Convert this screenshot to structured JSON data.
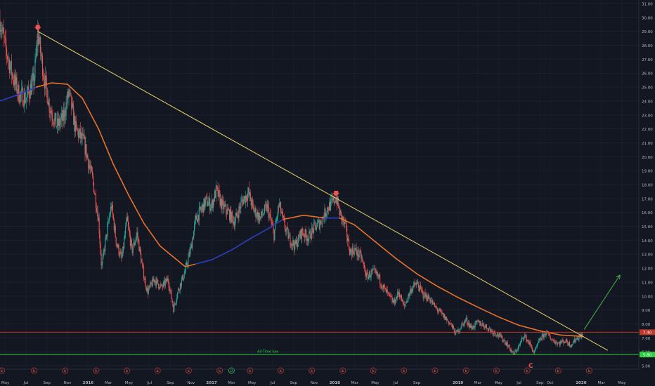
{
  "chart_data": {
    "type": "candlestick",
    "y_axis": {
      "position": "right",
      "ticks": [
        "31.00",
        "30.00",
        "29.00",
        "28.00",
        "27.00",
        "26.00",
        "25.00",
        "24.00",
        "23.00",
        "22.00",
        "21.00",
        "20.00",
        "19.00",
        "18.00",
        "17.00",
        "16.00",
        "15.00",
        "14.00",
        "13.00",
        "12.00",
        "11.00",
        "10.00",
        "9.00",
        "8.00",
        "7.00",
        "6.00",
        "5.00"
      ],
      "range": [
        4.75,
        31.25
      ]
    },
    "x_axis": {
      "tick_labels": [
        "May",
        "Jul",
        "Sep",
        "Nov",
        "2016",
        "Mar",
        "May",
        "Jul",
        "Sep",
        "Nov",
        "2017",
        "Mar",
        "May",
        "Jul",
        "Sep",
        "Nov",
        "2018",
        "Mar",
        "May",
        "Jul",
        "Sep",
        "2019",
        "Mar",
        "May",
        "Jul",
        "Sep",
        "Oct",
        "2020",
        "Mar",
        "May"
      ],
      "bold_labels": [
        "2016",
        "2017",
        "2018",
        "2019",
        "2020"
      ],
      "range": [
        "2015-04-15",
        "2020-06-20"
      ]
    },
    "price_path": [
      [
        "2015-04-15",
        29.8
      ],
      [
        "2015-05-01",
        27.8
      ],
      [
        "2015-05-20",
        26.0
      ],
      [
        "2015-06-10",
        24.5
      ],
      [
        "2015-07-01",
        24.2
      ],
      [
        "2015-07-25",
        25.5
      ],
      [
        "2015-08-05",
        28.9
      ],
      [
        "2015-08-25",
        25.5
      ],
      [
        "2015-09-10",
        23.5
      ],
      [
        "2015-10-01",
        22.2
      ],
      [
        "2015-10-20",
        22.8
      ],
      [
        "2015-11-05",
        24.6
      ],
      [
        "2015-11-25",
        22.0
      ],
      [
        "2015-12-20",
        21.0
      ],
      [
        "2016-01-15",
        18.3
      ],
      [
        "2016-02-01",
        15.5
      ],
      [
        "2016-02-10",
        12.0
      ],
      [
        "2016-02-25",
        14.5
      ],
      [
        "2016-03-10",
        16.5
      ],
      [
        "2016-03-25",
        13.8
      ],
      [
        "2016-04-10",
        12.6
      ],
      [
        "2016-04-25",
        15.5
      ],
      [
        "2016-05-10",
        13.2
      ],
      [
        "2016-05-25",
        14.5
      ],
      [
        "2016-06-10",
        12.0
      ],
      [
        "2016-06-25",
        10.3
      ],
      [
        "2016-07-15",
        11.2
      ],
      [
        "2016-08-05",
        10.6
      ],
      [
        "2016-08-25",
        11.2
      ],
      [
        "2016-09-10",
        9.1
      ],
      [
        "2016-09-25",
        10.5
      ],
      [
        "2016-10-15",
        11.8
      ],
      [
        "2016-11-01",
        13.5
      ],
      [
        "2016-11-15",
        15.5
      ],
      [
        "2016-12-01",
        16.2
      ],
      [
        "2016-12-15",
        16.8
      ],
      [
        "2017-01-01",
        16.5
      ],
      [
        "2017-01-15",
        17.6
      ],
      [
        "2017-02-01",
        16.5
      ],
      [
        "2017-02-20",
        16.0
      ],
      [
        "2017-03-10",
        15.3
      ],
      [
        "2017-04-01",
        16.8
      ],
      [
        "2017-04-20",
        17.4
      ],
      [
        "2017-05-05",
        16.2
      ],
      [
        "2017-05-25",
        15.6
      ],
      [
        "2017-06-15",
        16.4
      ],
      [
        "2017-07-05",
        14.4
      ],
      [
        "2017-07-20",
        16.6
      ],
      [
        "2017-08-05",
        15.0
      ],
      [
        "2017-08-20",
        14.1
      ],
      [
        "2017-09-05",
        13.6
      ],
      [
        "2017-09-25",
        14.6
      ],
      [
        "2017-10-15",
        14.2
      ],
      [
        "2017-11-01",
        14.9
      ],
      [
        "2017-11-20",
        15.3
      ],
      [
        "2017-12-10",
        16.3
      ],
      [
        "2017-12-25",
        16.7
      ],
      [
        "2018-01-05",
        17.1
      ],
      [
        "2018-01-15",
        16.0
      ],
      [
        "2018-02-01",
        15.0
      ],
      [
        "2018-02-15",
        13.2
      ],
      [
        "2018-03-01",
        13.3
      ],
      [
        "2018-03-20",
        12.8
      ],
      [
        "2018-04-05",
        11.4
      ],
      [
        "2018-04-25",
        11.7
      ],
      [
        "2018-05-10",
        11.4
      ],
      [
        "2018-05-25",
        10.6
      ],
      [
        "2018-06-10",
        10.0
      ],
      [
        "2018-06-25",
        9.5
      ],
      [
        "2018-07-10",
        10.3
      ],
      [
        "2018-07-25",
        9.2
      ],
      [
        "2018-08-15",
        10.5
      ],
      [
        "2018-09-01",
        10.9
      ],
      [
        "2018-09-20",
        10.1
      ],
      [
        "2018-10-10",
        9.8
      ],
      [
        "2018-10-25",
        9.2
      ],
      [
        "2018-11-10",
        8.8
      ],
      [
        "2018-11-25",
        8.4
      ],
      [
        "2018-12-10",
        8.0
      ],
      [
        "2018-12-25",
        7.3
      ],
      [
        "2019-01-10",
        7.8
      ],
      [
        "2019-01-25",
        8.3
      ],
      [
        "2019-02-10",
        7.7
      ],
      [
        "2019-03-01",
        8.1
      ],
      [
        "2019-03-20",
        7.9
      ],
      [
        "2019-04-10",
        7.5
      ],
      [
        "2019-05-01",
        7.2
      ],
      [
        "2019-05-25",
        6.6
      ],
      [
        "2019-06-15",
        5.8
      ],
      [
        "2019-07-01",
        6.4
      ],
      [
        "2019-07-15",
        7.2
      ],
      [
        "2019-08-01",
        6.6
      ],
      [
        "2019-08-15",
        5.9
      ],
      [
        "2019-09-01",
        6.9
      ],
      [
        "2019-09-20",
        7.4
      ],
      [
        "2019-10-05",
        6.9
      ],
      [
        "2019-10-25",
        6.6
      ],
      [
        "2019-11-15",
        6.8
      ],
      [
        "2019-12-01",
        6.5
      ],
      [
        "2019-12-20",
        7.0
      ],
      [
        "2020-01-05",
        7.2
      ]
    ],
    "ma_path": [
      [
        "2015-04-15",
        24.0
      ],
      [
        "2015-06-01",
        24.4
      ],
      [
        "2015-08-01",
        25.0
      ],
      [
        "2015-09-15",
        25.3
      ],
      [
        "2015-11-01",
        25.2
      ],
      [
        "2015-12-15",
        24.2
      ],
      [
        "2016-02-01",
        22.0
      ],
      [
        "2016-03-15",
        19.5
      ],
      [
        "2016-05-01",
        17.2
      ],
      [
        "2016-06-15",
        15.2
      ],
      [
        "2016-08-01",
        13.6
      ],
      [
        "2016-09-15",
        12.7
      ],
      [
        "2016-10-15",
        12.1
      ],
      [
        "2016-11-15",
        12.3
      ],
      [
        "2017-01-01",
        12.6
      ],
      [
        "2017-03-01",
        13.3
      ],
      [
        "2017-05-01",
        14.2
      ],
      [
        "2017-06-15",
        14.8
      ],
      [
        "2017-08-01",
        15.5
      ],
      [
        "2017-10-01",
        15.8
      ],
      [
        "2017-12-01",
        15.6
      ],
      [
        "2018-01-15",
        15.6
      ],
      [
        "2018-03-01",
        15.1
      ],
      [
        "2018-05-01",
        13.9
      ],
      [
        "2018-07-01",
        12.7
      ],
      [
        "2018-09-01",
        11.6
      ],
      [
        "2018-11-01",
        10.7
      ],
      [
        "2019-01-01",
        9.9
      ],
      [
        "2019-03-01",
        9.2
      ],
      [
        "2019-05-01",
        8.5
      ],
      [
        "2019-07-01",
        7.9
      ],
      [
        "2019-09-01",
        7.5
      ],
      [
        "2019-11-01",
        7.2
      ],
      [
        "2020-01-05",
        7.1
      ]
    ],
    "ma_blue_segments": [
      [
        "2015-04-15",
        "2015-08-15"
      ],
      [
        "2016-11-01",
        "2017-07-15"
      ],
      [
        "2017-12-10",
        "2018-02-01"
      ]
    ],
    "trendline": {
      "from": [
        "2015-08-05",
        29.0
      ],
      "to": [
        "2020-03-20",
        6.1
      ],
      "color": "#e8d36a"
    },
    "horizontal_lines": [
      {
        "y": 7.4,
        "color": "#c0392b",
        "label": "7.40"
      },
      {
        "y": 5.8,
        "color": "#2ecc40",
        "label": "5.80",
        "annotation": "All-Time low"
      }
    ],
    "markers": [
      {
        "x": "2015-08-05",
        "y": 29.0,
        "kind": "down-arrow",
        "color": "#ef5350"
      },
      {
        "x": "2018-01-05",
        "y": 17.1,
        "kind": "down-arrow",
        "color": "#ef5350"
      }
    ],
    "projection_arrow": {
      "from": [
        "2020-01-10",
        7.6
      ],
      "to": [
        "2020-04-25",
        11.5
      ],
      "color": "#4caf50"
    },
    "wave_label": {
      "text": "C",
      "x": "2019-08-05",
      "color": "#ef5350"
    },
    "earnings_events": {
      "marker_text": "E",
      "dates": [
        "2015-04-20",
        "2015-07-25",
        "2015-10-25",
        "2016-01-25",
        "2016-04-25",
        "2016-07-25",
        "2016-10-25",
        "2017-01-25",
        "2017-04-25",
        "2017-07-25",
        "2017-10-25",
        "2018-01-25",
        "2018-04-25",
        "2018-07-25",
        "2018-10-25",
        "2019-01-25",
        "2019-04-25",
        "2019-07-25",
        "2019-10-25",
        "2020-01-25"
      ],
      "dividend_marker": {
        "text": "D",
        "date": "2017-03-01"
      }
    },
    "colors": {
      "background": "#131722",
      "up": "#26a69a",
      "down": "#ef5350",
      "ma_orange": "#e8722a",
      "ma_blue": "#2f3fbf"
    }
  }
}
